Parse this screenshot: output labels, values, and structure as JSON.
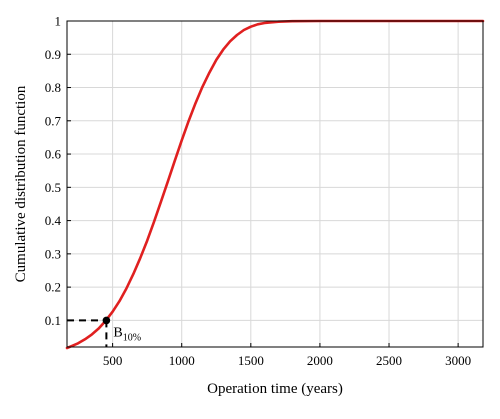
{
  "chart_data": {
    "type": "line",
    "title": "",
    "xlabel": "Operation time (years)",
    "ylabel": "Cumulative distribution function",
    "xlim": [
      170,
      3180
    ],
    "ylim": [
      0.02,
      1.0
    ],
    "xticks": [
      500,
      1000,
      1500,
      2000,
      2500,
      3000
    ],
    "yticks": [
      0.1,
      0.2,
      0.3,
      0.4,
      0.5,
      0.6,
      0.7,
      0.8,
      0.9,
      1
    ],
    "grid": true,
    "legend": "none",
    "series": [
      {
        "color": "#e02020",
        "x": [
          170,
          200,
          250,
          300,
          350,
          400,
          450,
          500,
          550,
          600,
          650,
          700,
          750,
          800,
          850,
          900,
          950,
          1000,
          1050,
          1100,
          1150,
          1200,
          1250,
          1300,
          1350,
          1400,
          1450,
          1500,
          1550,
          1600,
          1700,
          1800,
          2000,
          2500,
          3000,
          3180
        ],
        "y": [
          0.017,
          0.022,
          0.031,
          0.043,
          0.058,
          0.076,
          0.099,
          0.126,
          0.158,
          0.196,
          0.239,
          0.287,
          0.34,
          0.397,
          0.457,
          0.518,
          0.58,
          0.641,
          0.699,
          0.753,
          0.802,
          0.845,
          0.883,
          0.914,
          0.939,
          0.958,
          0.973,
          0.983,
          0.99,
          0.994,
          0.998,
          0.9995,
          1.0,
          1.0,
          1.0,
          1.0
        ]
      }
    ],
    "annotations": [
      {
        "label_main": "B",
        "label_sub": "10%",
        "x": 455,
        "y": 0.1,
        "style": "dashed reference lines to axes"
      }
    ]
  }
}
